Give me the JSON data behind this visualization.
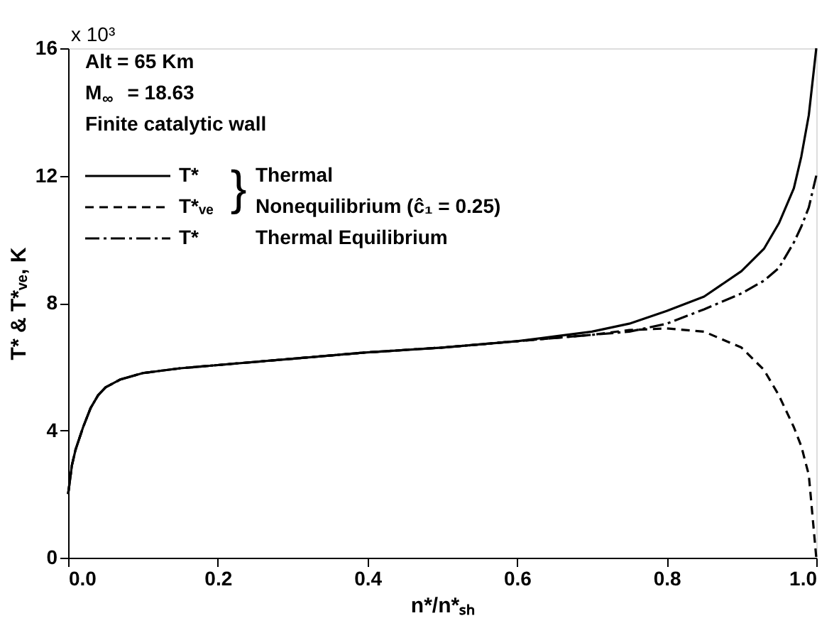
{
  "chart_data": {
    "type": "line",
    "xlabel": "n*/n*ₛₕ",
    "ylabel": "T* & T*ᵥₑ, K",
    "x": [
      0,
      0.005,
      0.01,
      0.02,
      0.03,
      0.04,
      0.05,
      0.07,
      0.1,
      0.15,
      0.2,
      0.3,
      0.4,
      0.5,
      0.6,
      0.65,
      0.7,
      0.75,
      0.8,
      0.85,
      0.9,
      0.93,
      0.95,
      0.97,
      0.98,
      0.99,
      1.0
    ],
    "series": [
      {
        "name": "T*",
        "color": "#000000",
        "line_style": "solid",
        "values": [
          2.0,
          2.9,
          3.4,
          4.1,
          4.7,
          5.1,
          5.35,
          5.6,
          5.8,
          5.95,
          6.05,
          6.25,
          6.45,
          6.6,
          6.8,
          6.95,
          7.1,
          7.35,
          7.75,
          8.2,
          9.0,
          9.7,
          10.5,
          11.6,
          12.6,
          13.9,
          16.0
        ]
      },
      {
        "name": "T*ᵥₑ",
        "color": "#000000",
        "line_style": "dashed",
        "values": [
          2.0,
          2.9,
          3.4,
          4.1,
          4.7,
          5.1,
          5.35,
          5.6,
          5.8,
          5.95,
          6.05,
          6.25,
          6.45,
          6.6,
          6.8,
          6.9,
          7.0,
          7.15,
          7.2,
          7.1,
          6.6,
          5.9,
          5.1,
          4.1,
          3.5,
          2.6,
          0.0
        ]
      },
      {
        "name": "T*",
        "color": "#000000",
        "line_style": "dotted",
        "values": [
          2.0,
          2.9,
          3.4,
          4.1,
          4.7,
          5.1,
          5.35,
          5.6,
          5.8,
          5.95,
          6.05,
          6.25,
          6.45,
          6.6,
          6.8,
          6.9,
          7.0,
          7.1,
          7.35,
          7.8,
          8.3,
          8.7,
          9.1,
          9.9,
          10.4,
          11.0,
          12.0
        ]
      }
    ],
    "annotations": [
      "Alt = 65 Km",
      "M$_{∞}$ = 18.63",
      "Finite catalytic wall",
      "Thermal",
      "Nonequilibrium (ĉ₁ = 0.25)",
      "Thermal Equilibrium",
      "x 10³",
      "}"
    ],
    "xlim": [
      0,
      1
    ],
    "xticks": [
      {
        "value": 0,
        "label": "0.0"
      },
      0.2,
      0.4,
      0.6,
      0.8,
      {
        "value": 1,
        "label": "1.0"
      }
    ],
    "ylim": [
      0,
      16
    ],
    "yticks": [
      0,
      4,
      8,
      12,
      16
    ],
    "grid": false,
    "legend": "top left",
    "marker": "none"
  }
}
